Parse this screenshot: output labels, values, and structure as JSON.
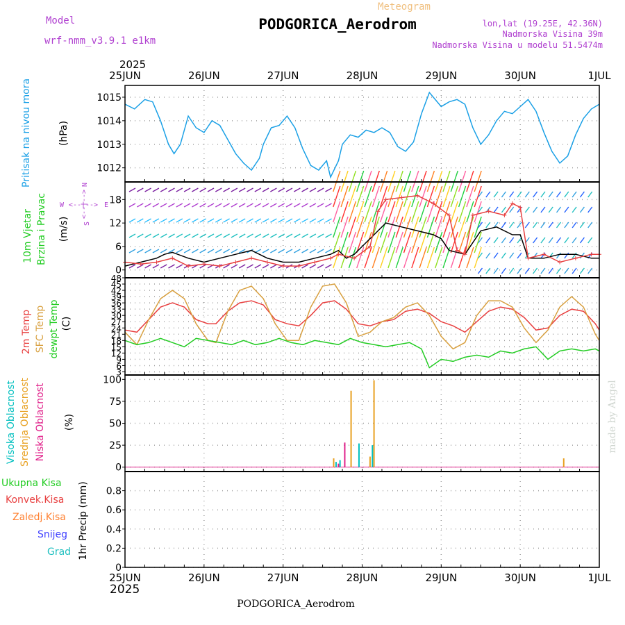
{
  "header": {
    "model_label": "Model",
    "model_name": "wrf-nmm_v3.9.1  e1km",
    "subtitle": "Meteogram",
    "title": "PODGORICA_Aerodrom",
    "coords": "lon,lat (19.25E, 42.36N)",
    "elevation": "Nadmorska Visina 39m",
    "model_elevation": "Nadmorska Visina u modelu 51.5474m"
  },
  "footer": {
    "title": "PODGORICA_Aerodrom"
  },
  "watermark": "made by Angel",
  "colors": {
    "pressure": "#1aa0e6",
    "wind_speed": "#000000",
    "wind_gust": "#e84040",
    "temp2m": "#e84040",
    "sfc_temp": "#d8a040",
    "dewpoint": "#22cc22",
    "cloud_high": "#00bfbf",
    "cloud_mid": "#e8a020",
    "cloud_low": "#e0208a",
    "precip_total": "#22cc22",
    "precip_conv": "#e84040",
    "precip_frozen": "#ff8030",
    "precip_snow": "#4040ff",
    "precip_hail": "#20c0c0",
    "label_purple": "#b040d0"
  },
  "x_axis": {
    "year": "2025",
    "ticks": [
      "25JUN",
      "26JUN",
      "27JUN",
      "28JUN",
      "29JUN",
      "30JUN",
      "1JUL"
    ]
  },
  "compass": {
    "n": "N",
    "s": "S",
    "e": "E",
    "w": "W",
    "arrows": "<--|-->"
  },
  "chart_data": [
    {
      "type": "line",
      "panel": "pressure",
      "ylabel_lines": [
        "Pritisak na nivou mora"
      ],
      "unit": "(hPa)",
      "ylim": [
        1011.4,
        1015.5
      ],
      "yticks": [
        1012,
        1013,
        1014,
        1015
      ],
      "xlim": [
        0,
        6
      ],
      "grid": true,
      "series": [
        {
          "x": [
            0,
            0.12,
            0.25,
            0.35,
            0.45,
            0.55,
            0.62,
            0.7,
            0.8,
            0.9,
            1.0,
            1.1,
            1.2,
            1.3,
            1.4,
            1.5,
            1.6,
            1.7,
            1.75,
            1.85,
            1.95,
            2.05,
            2.15,
            2.25,
            2.35,
            2.45,
            2.55,
            2.6,
            2.7,
            2.75,
            2.85,
            2.95,
            3.05,
            3.15,
            3.25,
            3.35,
            3.45,
            3.55,
            3.65,
            3.75,
            3.85,
            3.9,
            4.0,
            4.1,
            4.2,
            4.3,
            4.4,
            4.5,
            4.6,
            4.7,
            4.8,
            4.9,
            5.0,
            5.1,
            5.2,
            5.3,
            5.4,
            5.5,
            5.6,
            5.7,
            5.8,
            5.9,
            6.0
          ],
          "y": [
            1014.7,
            1014.5,
            1014.9,
            1014.8,
            1014.0,
            1013.0,
            1012.6,
            1013.0,
            1014.2,
            1013.7,
            1013.5,
            1014.0,
            1013.8,
            1013.2,
            1012.6,
            1012.2,
            1011.9,
            1012.4,
            1013.0,
            1013.7,
            1013.8,
            1014.2,
            1013.7,
            1012.8,
            1012.1,
            1011.9,
            1012.3,
            1011.6,
            1012.3,
            1013.0,
            1013.4,
            1013.3,
            1013.6,
            1013.5,
            1013.7,
            1013.5,
            1012.9,
            1012.7,
            1013.1,
            1014.3,
            1015.2,
            1015.0,
            1014.6,
            1014.8,
            1014.9,
            1014.7,
            1013.7,
            1013.0,
            1013.4,
            1014.0,
            1014.4,
            1014.3,
            1014.6,
            1014.9,
            1014.4,
            1013.5,
            1012.7,
            1012.2,
            1012.5,
            1013.4,
            1014.1,
            1014.5,
            1014.7
          ]
        }
      ]
    },
    {
      "type": "line",
      "panel": "wind",
      "ylabel_lines": [
        "10m Vjetar",
        "Brzina i Pravac"
      ],
      "unit": "(m/s)",
      "ylim": [
        -2,
        22.5
      ],
      "yticks": [
        0,
        6,
        12,
        18
      ],
      "xlim": [
        0,
        6
      ],
      "grid": true,
      "series": [
        {
          "name": "wind_speed",
          "x": [
            0,
            0.2,
            0.4,
            0.5,
            0.6,
            0.8,
            1.0,
            1.2,
            1.4,
            1.6,
            1.7,
            1.8,
            2.0,
            2.2,
            2.4,
            2.6,
            2.7,
            2.8,
            2.9,
            3.0,
            3.2,
            3.3,
            3.5,
            3.7,
            3.9,
            4.0,
            4.1,
            4.3,
            4.5,
            4.7,
            4.9,
            5.0,
            5.1,
            5.3,
            5.5,
            5.7,
            5.9,
            6.0
          ],
          "y": [
            1,
            2,
            3,
            4,
            4.5,
            3,
            2,
            3,
            4,
            5,
            4,
            3,
            2,
            2,
            3,
            4,
            5,
            3,
            4,
            6,
            10,
            12,
            11,
            10,
            9,
            8,
            5,
            4,
            10,
            11,
            9,
            9,
            3,
            3,
            4,
            4,
            3,
            3
          ]
        },
        {
          "name": "wind_gust",
          "x": [
            0,
            0.2,
            0.4,
            0.6,
            0.8,
            1.0,
            1.2,
            1.4,
            1.6,
            1.8,
            2.0,
            2.2,
            2.4,
            2.6,
            2.7,
            2.9,
            3.1,
            3.2,
            3.3,
            3.5,
            3.7,
            3.9,
            4.1,
            4.2,
            4.3,
            4.4,
            4.6,
            4.8,
            4.9,
            5.0,
            5.1,
            5.3,
            5.5,
            5.7,
            5.9,
            6.0
          ],
          "y": [
            2,
            1.5,
            2,
            3,
            1,
            1.5,
            1,
            2,
            3,
            2,
            1,
            1,
            2,
            3,
            4,
            3,
            6,
            15,
            18,
            18.5,
            19,
            17,
            14,
            5,
            4,
            14,
            15,
            14,
            17,
            16,
            3,
            4,
            2,
            3,
            4,
            4
          ]
        }
      ]
    },
    {
      "type": "line",
      "panel": "temperature",
      "ylabel_lines": [
        "2m Temp",
        "SFC Temp",
        "dewpt Temp"
      ],
      "unit": "(C)",
      "ylim": [
        1.5,
        48
      ],
      "yticks": [
        3,
        6,
        9,
        12,
        15,
        18,
        21,
        24,
        27,
        30,
        33,
        36,
        39,
        42,
        45,
        48
      ],
      "xlim": [
        0,
        6
      ],
      "grid": true,
      "series": [
        {
          "name": "temp2m",
          "x": [
            0,
            0.15,
            0.3,
            0.45,
            0.6,
            0.75,
            0.9,
            1.05,
            1.15,
            1.3,
            1.45,
            1.6,
            1.75,
            1.9,
            2.05,
            2.2,
            2.35,
            2.5,
            2.65,
            2.8,
            2.95,
            3.1,
            3.25,
            3.4,
            3.55,
            3.7,
            3.85,
            4.0,
            4.15,
            4.3,
            4.45,
            4.6,
            4.75,
            4.9,
            5.05,
            5.2,
            5.35,
            5.5,
            5.65,
            5.8,
            5.95,
            6.0
          ],
          "y": [
            23,
            22,
            28,
            34,
            36,
            34,
            28,
            26,
            26,
            32,
            36,
            37,
            35,
            28,
            26,
            25,
            30,
            36,
            37,
            33,
            26,
            25,
            27,
            28,
            32,
            33,
            31,
            27,
            25,
            22,
            27,
            32,
            34,
            33,
            29,
            23,
            24,
            30,
            33,
            32,
            26,
            23
          ]
        },
        {
          "name": "sfc_temp",
          "x": [
            0,
            0.15,
            0.3,
            0.45,
            0.6,
            0.75,
            0.9,
            1.05,
            1.15,
            1.3,
            1.45,
            1.6,
            1.75,
            1.9,
            2.05,
            2.2,
            2.35,
            2.5,
            2.65,
            2.8,
            2.95,
            3.1,
            3.25,
            3.4,
            3.55,
            3.7,
            3.85,
            4.0,
            4.15,
            4.3,
            4.45,
            4.6,
            4.75,
            4.9,
            5.05,
            5.2,
            5.35,
            5.5,
            5.65,
            5.8,
            5.95,
            6.0
          ],
          "y": [
            22,
            16,
            28,
            38,
            42,
            38,
            26,
            18,
            17,
            32,
            42,
            44,
            38,
            26,
            18,
            18,
            34,
            44,
            45,
            36,
            20,
            22,
            27,
            29,
            34,
            36,
            30,
            20,
            14,
            17,
            30,
            37,
            37,
            34,
            24,
            17,
            23,
            34,
            39,
            34,
            21,
            18
          ]
        },
        {
          "name": "dewpoint",
          "x": [
            0,
            0.15,
            0.3,
            0.45,
            0.6,
            0.75,
            0.9,
            1.05,
            1.2,
            1.35,
            1.5,
            1.65,
            1.8,
            1.95,
            2.1,
            2.25,
            2.4,
            2.55,
            2.7,
            2.85,
            3.0,
            3.15,
            3.3,
            3.45,
            3.6,
            3.75,
            3.85,
            4.0,
            4.15,
            4.3,
            4.45,
            4.6,
            4.75,
            4.9,
            5.05,
            5.2,
            5.35,
            5.5,
            5.65,
            5.8,
            5.95,
            6.0
          ],
          "y": [
            18,
            16,
            17,
            19,
            17,
            15,
            19,
            18,
            17,
            16,
            18,
            16,
            17,
            19,
            17,
            16,
            18,
            17,
            16,
            19,
            17,
            16,
            15,
            16,
            17,
            14,
            5,
            9,
            8,
            10,
            11,
            10,
            13,
            12,
            14,
            15,
            9,
            13,
            14,
            13,
            14,
            13
          ]
        }
      ]
    },
    {
      "type": "bar",
      "panel": "cloud",
      "ylabel_lines": [
        "Visoka Oblacnost",
        "Srednja Oblacnost",
        "Niska Oblacnost"
      ],
      "unit": "(%)",
      "ylim": [
        -5,
        105
      ],
      "yticks": [
        0,
        25,
        50,
        75,
        100
      ],
      "xlim": [
        0,
        6
      ],
      "grid": true,
      "series": [
        {
          "name": "Visoka Oblacnost",
          "x": [
            2.67,
            2.72,
            2.96,
            3.13
          ],
          "values": [
            6,
            8,
            27,
            25
          ]
        },
        {
          "name": "Srednja Oblacnost",
          "x": [
            2.64,
            2.86,
            3.1,
            3.15,
            5.55
          ],
          "values": [
            10,
            87,
            12,
            99,
            10
          ]
        },
        {
          "name": "Niska Oblacnost",
          "x": [
            2.7,
            2.78
          ],
          "values": [
            4,
            28
          ]
        }
      ]
    },
    {
      "type": "bar",
      "panel": "precip",
      "ylabel_lines": [
        "1hr Precip (mm)"
      ],
      "legend": [
        "Ukupna Kisa",
        "Konvek.Kisa",
        "Zaledj.Kisa",
        "Snijeg",
        "Grad"
      ],
      "unit": "",
      "ylim": [
        0,
        1.0
      ],
      "yticks": [
        0,
        0.2,
        0.4,
        0.6,
        0.8
      ],
      "ytick_labels": [
        "0",
        "0.2",
        "0.4",
        "0.6",
        "0.8"
      ],
      "xlim": [
        0,
        6
      ],
      "grid": true,
      "series": []
    }
  ]
}
